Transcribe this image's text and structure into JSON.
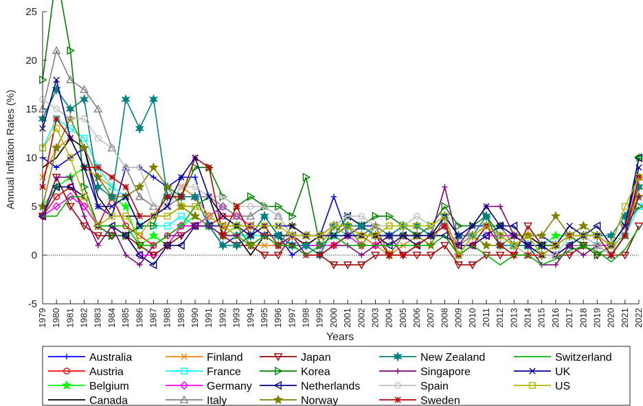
{
  "chart_data": {
    "type": "line",
    "title": "",
    "xlabel": "Years",
    "ylabel": "Annual Inflation Rates (%)",
    "xlim": [
      1979,
      2022
    ],
    "ylim": [
      -5,
      25
    ],
    "yticks": [
      -5,
      0,
      5,
      10,
      15,
      20,
      25
    ],
    "x": [
      1979,
      1980,
      1981,
      1982,
      1983,
      1984,
      1985,
      1986,
      1987,
      1988,
      1989,
      1990,
      1991,
      1992,
      1993,
      1994,
      1995,
      1996,
      1997,
      1998,
      1999,
      2000,
      2001,
      2002,
      2003,
      2004,
      2005,
      2006,
      2007,
      2008,
      2009,
      2010,
      2011,
      2012,
      2013,
      2014,
      2015,
      2016,
      2017,
      2018,
      2019,
      2020,
      2021,
      2022
    ],
    "zero_line": 0,
    "grid": false,
    "legend_position": "bottom",
    "series": [
      {
        "name": "Australia",
        "color": "#0000ff",
        "marker": "plus",
        "values": [
          10,
          9,
          10,
          11,
          5,
          4,
          9,
          9,
          8,
          7,
          8,
          8,
          3,
          1,
          2,
          2,
          4,
          2,
          0,
          1,
          2,
          6,
          2,
          3,
          3,
          2,
          3,
          3,
          2,
          4,
          2,
          3,
          3,
          2,
          2,
          2,
          2,
          1,
          2,
          2,
          2,
          1,
          3,
          7
        ]
      },
      {
        "name": "Austria",
        "color": "#ff0000",
        "marker": "circle",
        "values": [
          4,
          6,
          7,
          5,
          3,
          6,
          3,
          2,
          1,
          2,
          3,
          3,
          3,
          4,
          4,
          3,
          2,
          2,
          1,
          1,
          1,
          2,
          3,
          2,
          1,
          2,
          2,
          2,
          2,
          3,
          1,
          2,
          3,
          3,
          2,
          2,
          1,
          1,
          2,
          2,
          2,
          1,
          3,
          10
        ]
      },
      {
        "name": "Belgium",
        "color": "#00ff00",
        "marker": "star",
        "values": [
          5,
          7,
          8,
          9,
          8,
          6,
          5,
          1,
          2,
          1,
          3,
          4,
          3,
          2,
          3,
          2,
          2,
          2,
          2,
          1,
          1,
          3,
          2,
          2,
          2,
          2,
          3,
          2,
          2,
          4,
          0,
          2,
          3,
          3,
          1,
          0,
          1,
          2,
          2,
          2,
          1,
          1,
          2,
          10
        ]
      },
      {
        "name": "Canada",
        "color": "#000000",
        "marker": "none",
        "values": [
          9,
          10,
          12,
          11,
          6,
          4,
          4,
          4,
          4,
          4,
          5,
          5,
          6,
          2,
          2,
          0,
          2,
          2,
          2,
          1,
          2,
          3,
          3,
          2,
          3,
          2,
          2,
          2,
          2,
          2,
          0,
          2,
          3,
          2,
          1,
          2,
          1,
          1,
          2,
          2,
          2,
          1,
          3,
          7
        ]
      },
      {
        "name": "Finland",
        "color": "#ff7f00",
        "marker": "x",
        "values": [
          8,
          11,
          12,
          9,
          8,
          7,
          6,
          3,
          4,
          5,
          7,
          6,
          4,
          3,
          2,
          1,
          1,
          1,
          1,
          1,
          1,
          3,
          3,
          2,
          1,
          0,
          1,
          2,
          2,
          4,
          0,
          1,
          3,
          3,
          1,
          1,
          0,
          0,
          1,
          1,
          1,
          0,
          2,
          7
        ]
      },
      {
        "name": "France",
        "color": "#00ffff",
        "marker": "square",
        "values": [
          11,
          14,
          13,
          12,
          9,
          7,
          6,
          3,
          3,
          3,
          4,
          3,
          3,
          2,
          2,
          2,
          2,
          2,
          1,
          1,
          1,
          2,
          2,
          2,
          2,
          2,
          2,
          2,
          2,
          3,
          0,
          2,
          2,
          2,
          1,
          1,
          0,
          0,
          1,
          2,
          1,
          0,
          2,
          5
        ]
      },
      {
        "name": "Germany",
        "color": "#ff00ff",
        "marker": "diamond",
        "values": [
          4,
          5,
          6,
          5,
          3,
          2,
          2,
          0,
          0,
          1,
          3,
          3,
          4,
          5,
          4,
          3,
          2,
          1,
          2,
          1,
          1,
          1,
          2,
          1,
          1,
          2,
          2,
          2,
          2,
          3,
          0,
          1,
          2,
          2,
          2,
          1,
          1,
          1,
          2,
          2,
          1,
          1,
          3,
          8
        ]
      },
      {
        "name": "Italy",
        "color": "#808080",
        "marker": "triangle-up",
        "values": [
          15,
          21,
          18,
          17,
          15,
          11,
          9,
          6,
          5,
          5,
          6,
          6,
          6,
          5,
          4,
          4,
          5,
          4,
          2,
          2,
          2,
          3,
          3,
          2,
          3,
          2,
          2,
          2,
          2,
          3,
          1,
          2,
          3,
          3,
          1,
          0,
          0,
          0,
          1,
          1,
          1,
          0,
          2,
          8
        ]
      },
      {
        "name": "Japan",
        "color": "#a00000",
        "marker": "triangle-down",
        "values": [
          4,
          8,
          5,
          3,
          2,
          2,
          2,
          1,
          0,
          1,
          2,
          3,
          3,
          2,
          1,
          1,
          0,
          0,
          2,
          1,
          0,
          -1,
          -1,
          -1,
          0,
          0,
          0,
          0,
          0,
          1,
          -1,
          -1,
          0,
          0,
          0,
          3,
          1,
          0,
          0,
          1,
          0,
          0,
          0,
          3
        ]
      },
      {
        "name": "Korea",
        "color": "#008000",
        "marker": "triangle-right",
        "values": [
          18,
          29,
          21,
          7,
          3,
          2,
          2,
          3,
          3,
          7,
          6,
          9,
          9,
          6,
          5,
          6,
          5,
          5,
          4,
          8,
          1,
          2,
          4,
          3,
          4,
          4,
          3,
          2,
          3,
          5,
          3,
          3,
          4,
          2,
          1,
          1,
          1,
          1,
          2,
          1,
          0,
          1,
          3,
          5
        ]
      },
      {
        "name": "Netherlands",
        "color": "#000080",
        "marker": "triangle-left",
        "values": [
          4,
          7,
          7,
          6,
          3,
          3,
          2,
          0,
          -1,
          1,
          1,
          3,
          3,
          3,
          3,
          3,
          2,
          2,
          2,
          2,
          2,
          3,
          4,
          3,
          2,
          1,
          2,
          1,
          2,
          2,
          1,
          1,
          2,
          3,
          3,
          1,
          1,
          0,
          1,
          2,
          3,
          1,
          3,
          10
        ]
      },
      {
        "name": "Norway",
        "color": "#808000",
        "marker": "star",
        "values": [
          5,
          11,
          14,
          11,
          8,
          6,
          6,
          7,
          9,
          7,
          5,
          4,
          3,
          2,
          2,
          1,
          2,
          1,
          3,
          2,
          2,
          3,
          3,
          1,
          3,
          0,
          2,
          2,
          1,
          4,
          2,
          2,
          1,
          1,
          2,
          2,
          2,
          4,
          2,
          3,
          2,
          1,
          3,
          6
        ]
      },
      {
        "name": "New Zealand",
        "color": "#008080",
        "marker": "hexagram",
        "values": [
          14,
          17,
          15,
          16,
          7,
          6,
          16,
          13,
          16,
          6,
          6,
          6,
          3,
          1,
          1,
          2,
          4,
          2,
          1,
          1,
          0,
          3,
          3,
          3,
          2,
          2,
          3,
          3,
          2,
          4,
          2,
          2,
          4,
          1,
          1,
          1,
          0,
          1,
          2,
          2,
          2,
          2,
          4,
          7
        ]
      },
      {
        "name": "Singapore",
        "color": "#800080",
        "marker": "plus",
        "values": [
          4,
          8,
          8,
          4,
          1,
          3,
          0,
          -1,
          1,
          2,
          2,
          3,
          3,
          2,
          2,
          3,
          2,
          1,
          2,
          0,
          0,
          1,
          1,
          0,
          1,
          2,
          0,
          1,
          2,
          7,
          1,
          3,
          5,
          5,
          2,
          1,
          -1,
          -1,
          1,
          0,
          1,
          0,
          2,
          6
        ]
      },
      {
        "name": "Spain",
        "color": "#c0c0c0",
        "marker": "circle",
        "values": [
          16,
          15,
          14,
          14,
          12,
          11,
          9,
          9,
          5,
          5,
          7,
          7,
          6,
          6,
          5,
          5,
          5,
          4,
          2,
          2,
          2,
          3,
          4,
          4,
          3,
          3,
          3,
          4,
          3,
          4,
          0,
          2,
          3,
          2,
          1,
          0,
          0,
          0,
          2,
          2,
          1,
          0,
          3,
          8
        ]
      },
      {
        "name": "Sweden",
        "color": "#c00000",
        "marker": "asterisk",
        "values": [
          7,
          14,
          12,
          9,
          9,
          8,
          7,
          4,
          4,
          6,
          6,
          10,
          9,
          2,
          5,
          2,
          3,
          1,
          1,
          0,
          0,
          1,
          2,
          2,
          2,
          0,
          0,
          1,
          2,
          3,
          0,
          1,
          3,
          1,
          0,
          0,
          0,
          1,
          2,
          2,
          2,
          0,
          2,
          8
        ]
      },
      {
        "name": "Switzerland",
        "color": "#00b000",
        "marker": "none",
        "values": [
          4,
          4,
          6,
          6,
          3,
          3,
          3,
          1,
          1,
          2,
          3,
          5,
          6,
          4,
          3,
          1,
          2,
          1,
          1,
          0,
          1,
          2,
          1,
          1,
          1,
          1,
          1,
          1,
          1,
          2,
          0,
          1,
          0,
          -1,
          0,
          0,
          -1,
          -0.4,
          0.5,
          0.9,
          0.4,
          -0.7,
          0.6,
          2.8
        ]
      },
      {
        "name": "UK",
        "color": "#00008b",
        "marker": "x",
        "values": [
          13,
          18,
          12,
          9,
          5,
          5,
          6,
          3,
          4,
          5,
          8,
          10,
          6,
          4,
          3,
          2,
          3,
          3,
          3,
          2,
          2,
          2,
          2,
          2,
          2,
          2,
          2,
          2,
          2,
          4,
          2,
          3,
          5,
          3,
          2,
          1,
          0,
          1,
          3,
          2,
          2,
          1,
          3,
          9
        ]
      },
      {
        "name": "US",
        "color": "#b5b500",
        "marker": "square",
        "values": [
          11,
          13,
          10,
          6,
          3,
          4,
          4,
          2,
          4,
          4,
          5,
          5,
          4,
          3,
          3,
          3,
          3,
          3,
          2,
          2,
          2,
          3,
          3,
          2,
          2,
          3,
          3,
          3,
          3,
          4,
          0,
          2,
          3,
          2,
          1,
          2,
          0,
          1,
          2,
          2,
          2,
          1,
          5,
          8
        ]
      }
    ]
  }
}
